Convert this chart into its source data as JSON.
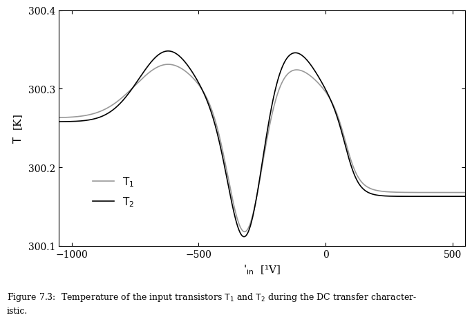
{
  "xlim": [
    -1050,
    550
  ],
  "ylim": [
    300.1,
    300.4
  ],
  "xticks": [
    -1000,
    -500,
    0,
    500
  ],
  "yticks": [
    300.1,
    300.2,
    300.3,
    300.4
  ],
  "xlabel": "$\\varphi_{in}$  [$\\mu$V]",
  "ylabel": "$T$  [K]",
  "T1_color": "#999999",
  "T2_color": "#000000",
  "T1_label": "$T_1$",
  "T2_label": "$T_2$",
  "T1_linewidth": 1.2,
  "T2_linewidth": 1.2,
  "background_color": "#ffffff",
  "caption": "Figure 7.3:  Temperature of the input transistors $T_1$ and $T_2$ during the DC transfer characteristic.",
  "fig_width": 7.17,
  "fig_height": 4.55
}
